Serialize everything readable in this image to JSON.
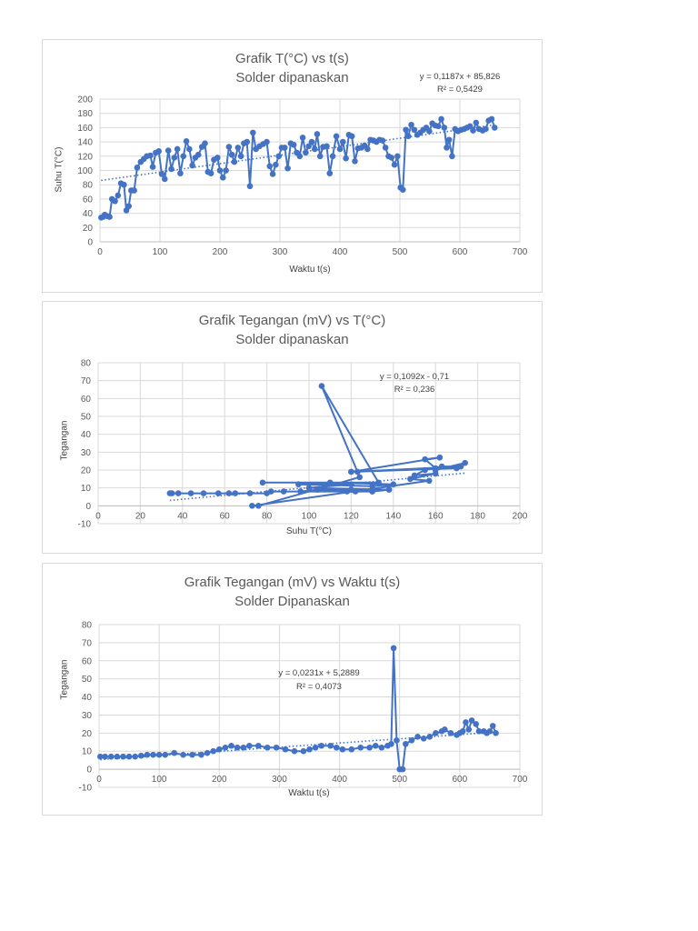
{
  "chart_data": [
    {
      "type": "scatter-line",
      "title": "Grafik T(°C) vs t(s)",
      "subtitle": "Solder dipanaskan",
      "xlabel": "Waktu t(s)",
      "ylabel": "Suhu T(°C)",
      "xlim": [
        0,
        700
      ],
      "xticks": [
        0,
        100,
        200,
        300,
        400,
        500,
        600,
        700
      ],
      "ylim": [
        0,
        200
      ],
      "yticks": [
        0,
        20,
        40,
        60,
        80,
        100,
        120,
        140,
        160,
        180,
        200
      ],
      "grid": true,
      "color": "#4472C4",
      "trendline": {
        "slope": 0.1187,
        "intercept": 85.826,
        "equation": "y = 0,1187x + 85,826",
        "r2": "R² = 0,5429"
      },
      "points": [
        [
          2,
          34
        ],
        [
          5,
          35
        ],
        [
          8,
          38
        ],
        [
          12,
          36
        ],
        [
          16,
          35
        ],
        [
          20,
          60
        ],
        [
          25,
          57
        ],
        [
          30,
          65
        ],
        [
          35,
          82
        ],
        [
          40,
          80
        ],
        [
          44,
          44
        ],
        [
          48,
          50
        ],
        [
          52,
          72
        ],
        [
          57,
          72
        ],
        [
          62,
          104
        ],
        [
          68,
          112
        ],
        [
          73,
          116
        ],
        [
          78,
          120
        ],
        [
          84,
          121
        ],
        [
          88,
          105
        ],
        [
          93,
          125
        ],
        [
          98,
          127
        ],
        [
          103,
          95
        ],
        [
          108,
          88
        ],
        [
          114,
          128
        ],
        [
          119,
          102
        ],
        [
          124,
          118
        ],
        [
          129,
          130
        ],
        [
          134,
          96
        ],
        [
          139,
          120
        ],
        [
          144,
          141
        ],
        [
          149,
          130
        ],
        [
          154,
          107
        ],
        [
          159,
          118
        ],
        [
          164,
          122
        ],
        [
          170,
          133
        ],
        [
          175,
          138
        ],
        [
          180,
          98
        ],
        [
          185,
          96
        ],
        [
          190,
          115
        ],
        [
          196,
          118
        ],
        [
          200,
          100
        ],
        [
          205,
          90
        ],
        [
          210,
          100
        ],
        [
          215,
          133
        ],
        [
          220,
          122
        ],
        [
          224,
          112
        ],
        [
          230,
          132
        ],
        [
          235,
          120
        ],
        [
          240,
          138
        ],
        [
          245,
          140
        ],
        [
          250,
          78
        ],
        [
          255,
          153
        ],
        [
          260,
          130
        ],
        [
          266,
          134
        ],
        [
          272,
          137
        ],
        [
          278,
          140
        ],
        [
          283,
          106
        ],
        [
          288,
          95
        ],
        [
          293,
          108
        ],
        [
          298,
          120
        ],
        [
          303,
          132
        ],
        [
          308,
          132
        ],
        [
          313,
          103
        ],
        [
          318,
          138
        ],
        [
          323,
          136
        ],
        [
          328,
          125
        ],
        [
          333,
          120
        ],
        [
          338,
          146
        ],
        [
          343,
          125
        ],
        [
          348,
          134
        ],
        [
          353,
          140
        ],
        [
          358,
          130
        ],
        [
          362,
          151
        ],
        [
          367,
          120
        ],
        [
          372,
          133
        ],
        [
          378,
          134
        ],
        [
          383,
          96
        ],
        [
          388,
          120
        ],
        [
          394,
          148
        ],
        [
          400,
          130
        ],
        [
          405,
          140
        ],
        [
          410,
          117
        ],
        [
          415,
          150
        ],
        [
          420,
          148
        ],
        [
          425,
          113
        ],
        [
          430,
          131
        ],
        [
          436,
          132
        ],
        [
          441,
          135
        ],
        [
          446,
          130
        ],
        [
          451,
          143
        ],
        [
          456,
          142
        ],
        [
          461,
          140
        ],
        [
          466,
          143
        ],
        [
          471,
          142
        ],
        [
          476,
          132
        ],
        [
          481,
          120
        ],
        [
          486,
          118
        ],
        [
          491,
          108
        ],
        [
          496,
          120
        ],
        [
          501,
          76
        ],
        [
          505,
          73
        ],
        [
          510,
          157
        ],
        [
          514,
          148
        ],
        [
          519,
          164
        ],
        [
          524,
          157
        ],
        [
          529,
          150
        ],
        [
          534,
          153
        ],
        [
          539,
          157
        ],
        [
          544,
          160
        ],
        [
          549,
          155
        ],
        [
          554,
          166
        ],
        [
          559,
          163
        ],
        [
          564,
          162
        ],
        [
          569,
          172
        ],
        [
          574,
          160
        ],
        [
          578,
          132
        ],
        [
          582,
          143
        ],
        [
          587,
          120
        ],
        [
          592,
          158
        ],
        [
          597,
          155
        ],
        [
          602,
          157
        ],
        [
          607,
          158
        ],
        [
          612,
          160
        ],
        [
          617,
          162
        ],
        [
          622,
          156
        ],
        [
          627,
          167
        ],
        [
          632,
          158
        ],
        [
          638,
          156
        ],
        [
          643,
          158
        ],
        [
          648,
          170
        ],
        [
          653,
          172
        ],
        [
          658,
          160
        ]
      ]
    },
    {
      "type": "scatter-line",
      "title": "Grafik Tegangan (mV) vs T(°C)",
      "subtitle": "Solder dipanaskan",
      "xlabel": "Suhu T(°C)",
      "ylabel": "Tegangan",
      "xlim": [
        0,
        200
      ],
      "xticks": [
        0,
        20,
        40,
        60,
        80,
        100,
        120,
        140,
        160,
        180,
        200
      ],
      "ylim": [
        -10,
        80
      ],
      "yticks": [
        -10,
        0,
        10,
        20,
        30,
        40,
        50,
        60,
        70,
        80
      ],
      "grid": true,
      "color": "#4472C4",
      "trendline": {
        "slope": 0.1092,
        "intercept": -0.71,
        "equation": "y = 0,1092x - 0,71",
        "r2": "R² = 0,236"
      },
      "points": [
        [
          34,
          7
        ],
        [
          35,
          7
        ],
        [
          38,
          7
        ],
        [
          44,
          7
        ],
        [
          50,
          7
        ],
        [
          57,
          7
        ],
        [
          62,
          7
        ],
        [
          65,
          7
        ],
        [
          72,
          7
        ],
        [
          80,
          7
        ],
        [
          82,
          8
        ],
        [
          88,
          8
        ],
        [
          96,
          8
        ],
        [
          104,
          9
        ],
        [
          120,
          9
        ],
        [
          130,
          8
        ],
        [
          96,
          8
        ],
        [
          118,
          8
        ],
        [
          122,
          8
        ],
        [
          130,
          8
        ],
        [
          138,
          9
        ],
        [
          100,
          10
        ],
        [
          120,
          12
        ],
        [
          95,
          12
        ],
        [
          130,
          11
        ],
        [
          140,
          12
        ],
        [
          110,
          13
        ],
        [
          78,
          13
        ],
        [
          133,
          13
        ],
        [
          106,
          67
        ],
        [
          123,
          19
        ],
        [
          124,
          16
        ],
        [
          76,
          0
        ],
        [
          73,
          0
        ],
        [
          157,
          14
        ],
        [
          148,
          15
        ],
        [
          160,
          18
        ],
        [
          150,
          17
        ],
        [
          155,
          20
        ],
        [
          163,
          22
        ],
        [
          172,
          22
        ],
        [
          120,
          19
        ],
        [
          160,
          21
        ],
        [
          155,
          26
        ],
        [
          162,
          27
        ],
        [
          120,
          19
        ],
        [
          170,
          21
        ],
        [
          174,
          24
        ],
        [
          160,
          20
        ]
      ]
    },
    {
      "type": "scatter-line",
      "title": "Grafik Tegangan (mV) vs Waktu t(s)",
      "subtitle": "Solder Dipanaskan",
      "xlabel": "Waktu t(s)",
      "ylabel": "Tegangan",
      "xlim": [
        0,
        700
      ],
      "xticks": [
        0,
        100,
        200,
        300,
        400,
        500,
        600,
        700
      ],
      "ylim": [
        -10,
        80
      ],
      "yticks": [
        -10,
        0,
        10,
        20,
        30,
        40,
        50,
        60,
        70,
        80
      ],
      "grid": true,
      "color": "#4472C4",
      "trendline": {
        "slope": 0.0231,
        "intercept": 5.2889,
        "equation": "y = 0,0231x + 5,2889",
        "r2": "R² = 0,4073"
      },
      "points": [
        [
          2,
          7
        ],
        [
          10,
          7
        ],
        [
          20,
          7
        ],
        [
          30,
          7
        ],
        [
          40,
          7
        ],
        [
          50,
          7
        ],
        [
          60,
          7
        ],
        [
          70,
          7.5
        ],
        [
          80,
          8
        ],
        [
          90,
          8
        ],
        [
          100,
          8
        ],
        [
          110,
          8
        ],
        [
          125,
          9
        ],
        [
          140,
          8
        ],
        [
          155,
          8
        ],
        [
          170,
          8
        ],
        [
          180,
          9
        ],
        [
          190,
          10
        ],
        [
          200,
          11
        ],
        [
          210,
          12
        ],
        [
          220,
          13
        ],
        [
          230,
          12
        ],
        [
          240,
          12
        ],
        [
          250,
          13
        ],
        [
          265,
          13
        ],
        [
          280,
          12
        ],
        [
          295,
          12
        ],
        [
          310,
          11
        ],
        [
          325,
          10
        ],
        [
          340,
          10
        ],
        [
          350,
          11
        ],
        [
          360,
          12
        ],
        [
          370,
          13
        ],
        [
          385,
          13
        ],
        [
          395,
          12
        ],
        [
          405,
          11
        ],
        [
          420,
          11
        ],
        [
          435,
          12
        ],
        [
          450,
          12
        ],
        [
          460,
          13
        ],
        [
          470,
          12
        ],
        [
          480,
          13
        ],
        [
          486,
          14
        ],
        [
          490,
          67
        ],
        [
          495,
          16
        ],
        [
          500,
          0
        ],
        [
          505,
          0
        ],
        [
          510,
          14
        ],
        [
          520,
          16
        ],
        [
          530,
          18
        ],
        [
          540,
          17
        ],
        [
          550,
          18
        ],
        [
          560,
          20
        ],
        [
          570,
          21
        ],
        [
          575,
          22
        ],
        [
          585,
          20
        ],
        [
          595,
          19
        ],
        [
          600,
          20
        ],
        [
          605,
          21
        ],
        [
          610,
          26
        ],
        [
          615,
          22
        ],
        [
          620,
          27
        ],
        [
          627,
          25
        ],
        [
          632,
          21
        ],
        [
          640,
          21
        ],
        [
          645,
          20
        ],
        [
          650,
          21
        ],
        [
          655,
          24
        ],
        [
          660,
          20
        ]
      ]
    }
  ]
}
